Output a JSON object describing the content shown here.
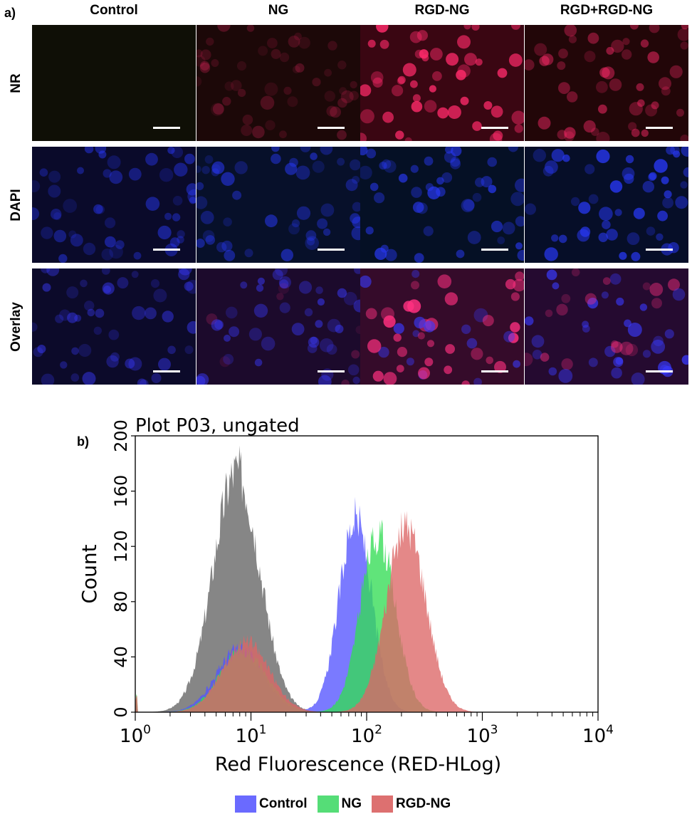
{
  "panel_a": {
    "label": "a)",
    "columns": [
      "Control",
      "NG",
      "RGD-NG",
      "RGD+RGD-NG"
    ],
    "rows": [
      "NR",
      "DAPI",
      "Overlay"
    ]
  },
  "panel_b": {
    "label": "b)"
  },
  "chart_data": {
    "type": "area",
    "title": "Plot P03, ungated",
    "xlabel": "Red Fluorescence (RED-HLog)",
    "ylabel": "Count",
    "x_scale": "log",
    "xlim": [
      1,
      10000
    ],
    "ylim": [
      0,
      200
    ],
    "x_ticks": [
      {
        "base": "10",
        "exp": "0"
      },
      {
        "base": "10",
        "exp": "1"
      },
      {
        "base": "10",
        "exp": "2"
      },
      {
        "base": "10",
        "exp": "3"
      },
      {
        "base": "10",
        "exp": "4"
      }
    ],
    "y_ticks": [
      "0",
      "40",
      "80",
      "120",
      "160",
      "200"
    ],
    "series": [
      {
        "color": "#808080",
        "peak_x": 7.5,
        "peak_y": 188,
        "width_decades": 0.2
      },
      {
        "name": "Control",
        "color": "#5555ff",
        "peak_x": 80,
        "peak_y": 150,
        "width_decades": 0.14,
        "secondary_peak_x": 8,
        "secondary_peak_y": 50
      },
      {
        "name": "NG",
        "color": "#33dd55",
        "peak_x": 125,
        "peak_y": 138,
        "width_decades": 0.15,
        "secondary_peak_x": 8.5,
        "secondary_peak_y": 48
      },
      {
        "name": "RGD-NG",
        "color": "#dd6666",
        "peak_x": 220,
        "peak_y": 145,
        "width_decades": 0.17,
        "secondary_peak_x": 9,
        "secondary_peak_y": 55
      }
    ],
    "legend": [
      "Control",
      "NG",
      "RGD-NG"
    ],
    "legend_position": "bottom"
  }
}
